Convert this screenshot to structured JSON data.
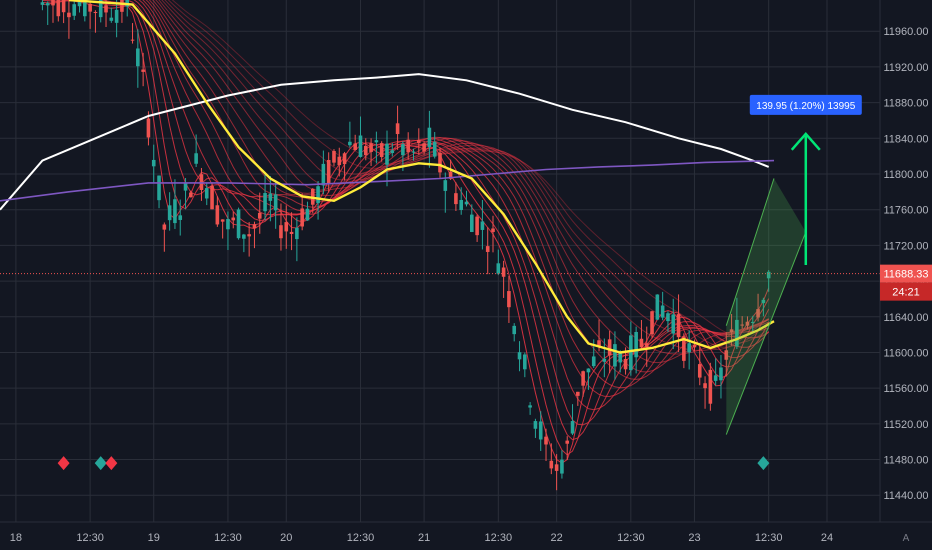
{
  "chart_data": {
    "type": "line",
    "title": "",
    "xlabel": "",
    "ylabel": "",
    "x_ticks": [
      {
        "i": 0,
        "label": "18"
      },
      {
        "i": 14,
        "label": "12:30"
      },
      {
        "i": 26,
        "label": "19"
      },
      {
        "i": 40,
        "label": "12:30"
      },
      {
        "i": 51,
        "label": "20"
      },
      {
        "i": 65,
        "label": "12:30"
      },
      {
        "i": 77,
        "label": "21"
      },
      {
        "i": 91,
        "label": "12:30"
      },
      {
        "i": 102,
        "label": "22"
      },
      {
        "i": 116,
        "label": "12:30"
      },
      {
        "i": 128,
        "label": "23"
      },
      {
        "i": 142,
        "label": "12:30"
      },
      {
        "i": 153,
        "label": "24"
      }
    ],
    "x_range": [
      -3,
      163
    ],
    "ylim": [
      11410,
      11995
    ],
    "y_ticks": [
      11440,
      11480,
      11520,
      11560,
      11600,
      11640,
      11680,
      11720,
      11760,
      11800,
      11840,
      11880,
      11920,
      11960
    ],
    "y_tick_labels": [
      "11440.00",
      "11480.00",
      "11520.00",
      "11560.00",
      "11600.00",
      "11640.00",
      "11680.00",
      "11720.00",
      "11760.00",
      "11800.00",
      "11840.00",
      "11880.00",
      "11920.00",
      "11960.00"
    ],
    "last_price": 11688.33,
    "last_price_label": "11688.33",
    "countdown_label": "24:21",
    "grid": true,
    "series": [
      {
        "color": "#ffffff",
        "points": [
          [
            -3,
            11760
          ],
          [
            5,
            11815
          ],
          [
            15,
            11840
          ],
          [
            25,
            11865
          ],
          [
            40,
            11888
          ],
          [
            50,
            11900
          ],
          [
            60,
            11905
          ],
          [
            68,
            11908
          ],
          [
            76,
            11912
          ],
          [
            85,
            11905
          ],
          [
            95,
            11890
          ],
          [
            105,
            11872
          ],
          [
            115,
            11858
          ],
          [
            125,
            11840
          ],
          [
            133,
            11828
          ],
          [
            139,
            11815
          ],
          [
            142,
            11808
          ]
        ]
      },
      {
        "color": "#7e57c2",
        "points": [
          [
            -3,
            11770
          ],
          [
            10,
            11780
          ],
          [
            25,
            11790
          ],
          [
            40,
            11790
          ],
          [
            55,
            11788
          ],
          [
            70,
            11792
          ],
          [
            80,
            11795
          ],
          [
            90,
            11800
          ],
          [
            100,
            11805
          ],
          [
            110,
            11808
          ],
          [
            120,
            11810
          ],
          [
            130,
            11813
          ],
          [
            143,
            11815
          ]
        ]
      },
      {
        "color": "#ffeb3b",
        "points": [
          [
            10,
            11995
          ],
          [
            22,
            11990
          ],
          [
            30,
            11935
          ],
          [
            36,
            11880
          ],
          [
            42,
            11830
          ],
          [
            48,
            11795
          ],
          [
            54,
            11775
          ],
          [
            60,
            11770
          ],
          [
            65,
            11785
          ],
          [
            70,
            11805
          ],
          [
            76,
            11812
          ],
          [
            80,
            11810
          ],
          [
            86,
            11795
          ],
          [
            92,
            11755
          ],
          [
            98,
            11700
          ],
          [
            104,
            11640
          ],
          [
            108,
            11610
          ],
          [
            114,
            11600
          ],
          [
            120,
            11605
          ],
          [
            126,
            11615
          ],
          [
            131,
            11605
          ],
          [
            136,
            11615
          ],
          [
            140,
            11625
          ],
          [
            143,
            11635
          ]
        ]
      }
    ],
    "annotations": {
      "measure_label": "139.95 (1.20%) 13995",
      "arrow": {
        "x": 149,
        "y_from": 11698,
        "y_to": 11845
      },
      "channel": {
        "top": [
          [
            134,
            11630
          ],
          [
            143,
            11795
          ]
        ],
        "bottom": [
          [
            134,
            11508
          ],
          [
            149,
            11735
          ]
        ]
      },
      "signals": [
        {
          "x": 9,
          "y": 11476,
          "color": "#f23645"
        },
        {
          "x": 16,
          "y": 11476,
          "color": "#26a69a"
        },
        {
          "x": 18,
          "y": 11476,
          "color": "#f23645"
        },
        {
          "x": 141,
          "y": 11476,
          "color": "#26a69a"
        }
      ]
    },
    "colors": {
      "background": "#131722",
      "grid": "#2a2e39",
      "up": "#26a69a",
      "down": "#ef5350",
      "ribbon": "#f23645",
      "price_line": "#ef5350",
      "measure": "#2962ff",
      "arrow": "#00e676",
      "channel": "#4caf50"
    },
    "corner_label": "A"
  }
}
